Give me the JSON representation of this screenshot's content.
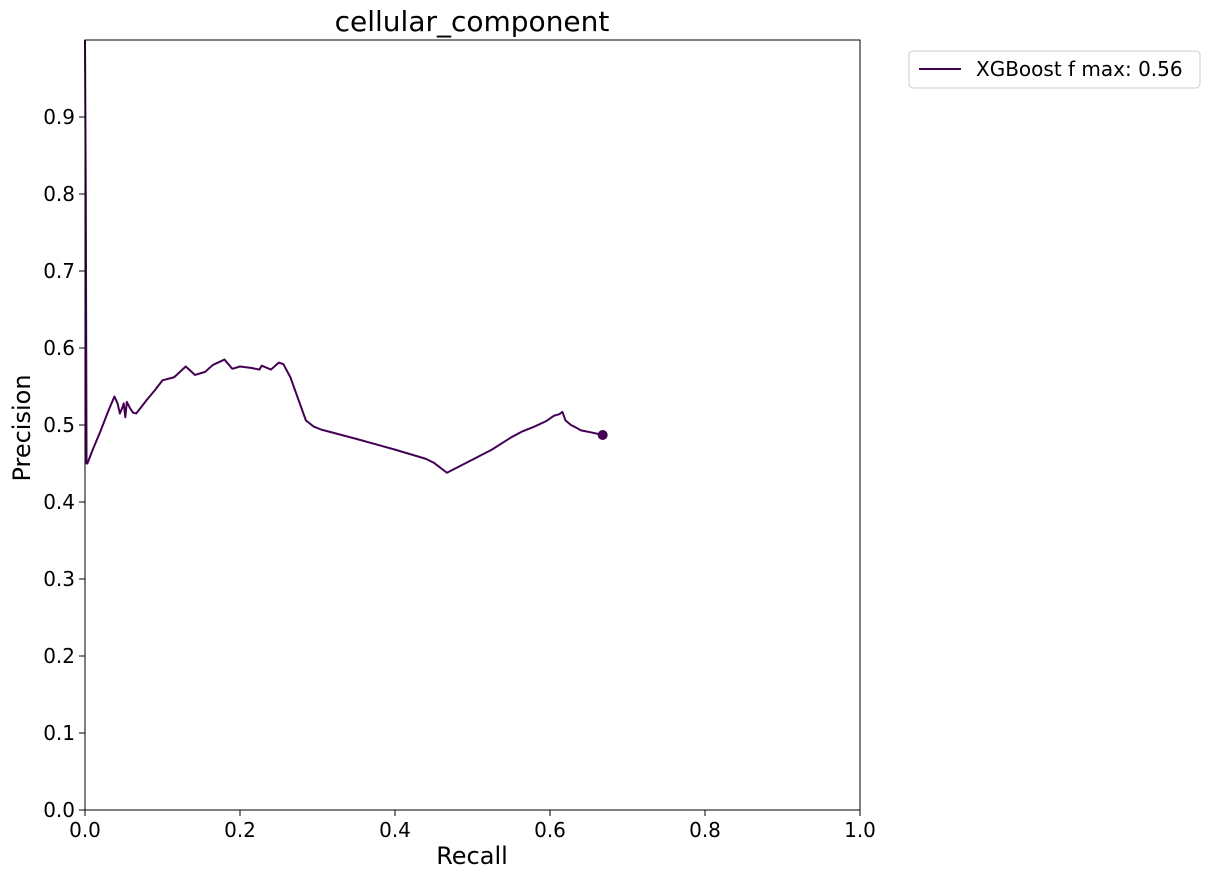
{
  "chart_data": {
    "type": "line",
    "title": "cellular_component",
    "xlabel": "Recall",
    "ylabel": "Precision",
    "xlim": [
      0.0,
      1.0
    ],
    "ylim": [
      0.0,
      1.0
    ],
    "xticks": [
      "0.0",
      "0.2",
      "0.4",
      "0.6",
      "0.8",
      "1.0"
    ],
    "yticks": [
      "0.0",
      "0.1",
      "0.2",
      "0.3",
      "0.4",
      "0.5",
      "0.6",
      "0.7",
      "0.8",
      "0.9"
    ],
    "grid": false,
    "legend_position": "outside-top-right",
    "series": [
      {
        "name": "XGBoost f max: 0.56",
        "color": "#440154",
        "x": [
          0.0,
          0.001,
          0.002,
          0.003,
          0.005,
          0.01,
          0.02,
          0.03,
          0.038,
          0.042,
          0.045,
          0.048,
          0.05,
          0.052,
          0.054,
          0.058,
          0.062,
          0.066,
          0.07,
          0.08,
          0.09,
          0.1,
          0.115,
          0.13,
          0.142,
          0.155,
          0.165,
          0.18,
          0.19,
          0.2,
          0.215,
          0.225,
          0.228,
          0.24,
          0.25,
          0.256,
          0.265,
          0.285,
          0.295,
          0.305,
          0.35,
          0.4,
          0.44,
          0.45,
          0.467,
          0.5,
          0.525,
          0.55,
          0.565,
          0.58,
          0.595,
          0.605,
          0.612,
          0.616,
          0.62,
          0.627,
          0.633,
          0.64,
          0.655,
          0.668
        ],
        "y": [
          1.0,
          0.8,
          0.45,
          0.45,
          0.455,
          0.468,
          0.492,
          0.518,
          0.537,
          0.528,
          0.515,
          0.522,
          0.528,
          0.51,
          0.53,
          0.522,
          0.516,
          0.515,
          0.52,
          0.533,
          0.545,
          0.558,
          0.562,
          0.576,
          0.565,
          0.569,
          0.578,
          0.585,
          0.573,
          0.576,
          0.574,
          0.572,
          0.577,
          0.572,
          0.581,
          0.579,
          0.562,
          0.506,
          0.498,
          0.494,
          0.482,
          0.468,
          0.456,
          0.451,
          0.438,
          0.455,
          0.468,
          0.484,
          0.492,
          0.498,
          0.505,
          0.512,
          0.514,
          0.517,
          0.506,
          0.5,
          0.497,
          0.493,
          0.49,
          0.487
        ]
      }
    ],
    "endpoint_marker": {
      "x": 0.668,
      "y": 0.487
    }
  }
}
